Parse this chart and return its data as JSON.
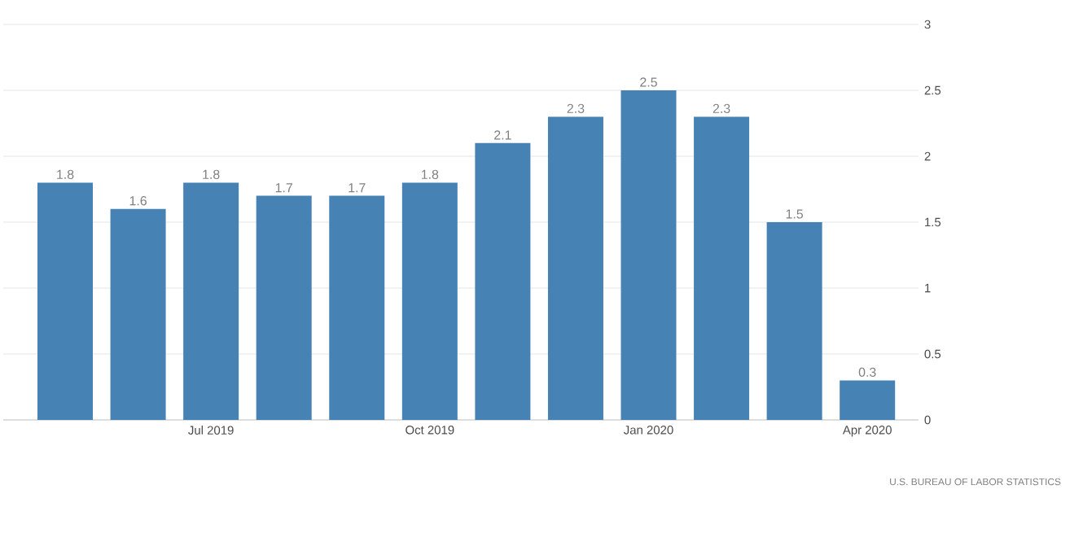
{
  "chart_data": {
    "type": "bar",
    "categories": [
      null,
      null,
      "Jul 2019",
      null,
      null,
      "Oct 2019",
      null,
      null,
      "Jan 2020",
      null,
      null,
      "Apr 2020"
    ],
    "values": [
      1.8,
      1.6,
      1.8,
      1.7,
      1.7,
      1.8,
      2.1,
      2.3,
      2.5,
      2.3,
      1.5,
      0.3
    ],
    "color": "#4682b4",
    "ylim": [
      0,
      3
    ],
    "yticks": [
      0,
      0.5,
      1,
      1.5,
      2,
      2.5,
      3
    ],
    "grid": "y",
    "data_labels": true,
    "annotations": [
      "U.S. BUREAU OF LABOR STATISTICS"
    ]
  }
}
